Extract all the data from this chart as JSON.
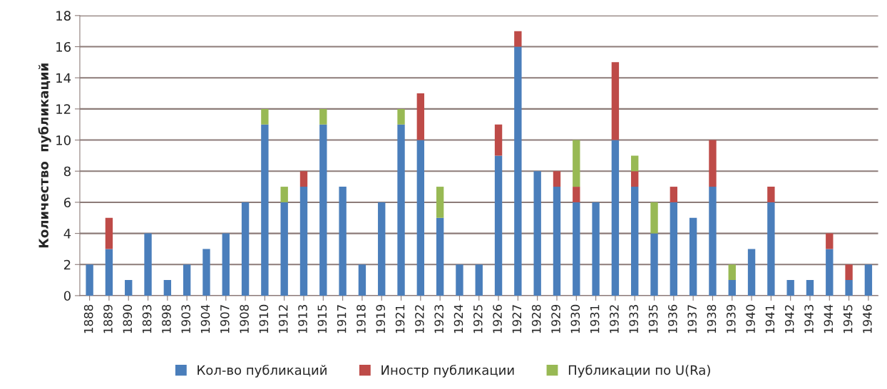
{
  "chart_data": {
    "type": "bar",
    "stacked": true,
    "ylabel": "Количество  публикаций",
    "categories": [
      "1888",
      "1889",
      "1890",
      "1893",
      "1898",
      "1903",
      "1904",
      "1907",
      "1908",
      "1910",
      "1912",
      "1913",
      "1915",
      "1917",
      "1918",
      "1919",
      "1921",
      "1922",
      "1923",
      "1924",
      "1925",
      "1926",
      "1927",
      "1928",
      "1929",
      "1930",
      "1931",
      "1932",
      "1933",
      "1935",
      "1936",
      "1937",
      "1938",
      "1939",
      "1940",
      "1941",
      "1942",
      "1943",
      "1944",
      "1945",
      "1946"
    ],
    "series": [
      {
        "name": "Кол-во публикаций",
        "color": "#4a7ebb",
        "values": [
          2,
          3,
          1,
          4,
          1,
          2,
          3,
          4,
          6,
          11,
          6,
          7,
          11,
          7,
          2,
          6,
          11,
          10,
          5,
          2,
          2,
          9,
          16,
          8,
          7,
          6,
          6,
          10,
          7,
          4,
          6,
          5,
          7,
          1,
          3,
          6,
          1,
          1,
          3,
          1,
          2
        ]
      },
      {
        "name": "Иностр публикации",
        "color": "#be4b48",
        "values": [
          0,
          2,
          0,
          0,
          0,
          0,
          0,
          0,
          0,
          0,
          0,
          1,
          0,
          0,
          0,
          0,
          0,
          3,
          0,
          0,
          0,
          2,
          1,
          0,
          1,
          1,
          0,
          5,
          1,
          0,
          1,
          0,
          3,
          0,
          0,
          1,
          0,
          0,
          1,
          1,
          0
        ]
      },
      {
        "name": "Публикации по U(Ra)",
        "color": "#98b954",
        "values": [
          0,
          0,
          0,
          0,
          0,
          0,
          0,
          0,
          0,
          1,
          1,
          0,
          1,
          0,
          0,
          0,
          1,
          0,
          2,
          0,
          0,
          0,
          0,
          0,
          0,
          3,
          0,
          0,
          1,
          2,
          0,
          0,
          0,
          1,
          0,
          0,
          0,
          0,
          0,
          0,
          0
        ]
      }
    ],
    "ylim": [
      0,
      18
    ],
    "yticks": [
      0,
      2,
      4,
      6,
      8,
      10,
      12,
      14,
      16,
      18
    ],
    "grid": "y",
    "legend": "bottom"
  }
}
